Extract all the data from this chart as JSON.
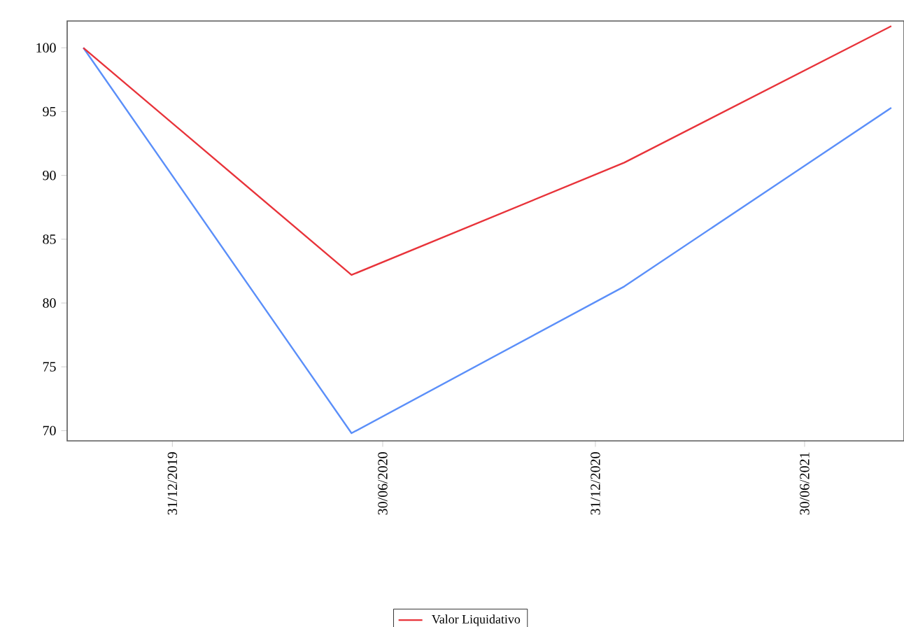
{
  "chart_data": {
    "type": "line",
    "x": [
      "2019-10-15",
      "2020-06-03",
      "2021-01-25",
      "2021-09-13"
    ],
    "series": [
      {
        "color": "#5b8ff9",
        "values": [
          100,
          69.8,
          81.3,
          95.3
        ]
      },
      {
        "name": "Valor Liquidativo",
        "color": "#e8333a",
        "values": [
          100,
          82.2,
          91.0,
          101.7
        ]
      }
    ],
    "xlim": [
      "2019-10-01",
      "2021-09-24"
    ],
    "xticks": [
      {
        "value": "2019-12-31",
        "label": "31/12/2019"
      },
      {
        "value": "2020-06-30",
        "label": "30/06/2020"
      },
      {
        "value": "2020-12-31",
        "label": "31/12/2020"
      },
      {
        "value": "2021-06-30",
        "label": "30/06/2021"
      }
    ],
    "ylim": [
      69.2,
      102.1
    ],
    "yticks": [
      70,
      75,
      80,
      85,
      90,
      95,
      100
    ],
    "legend": "bottom",
    "grid": false,
    "marker": "none",
    "line_style": "solid"
  }
}
